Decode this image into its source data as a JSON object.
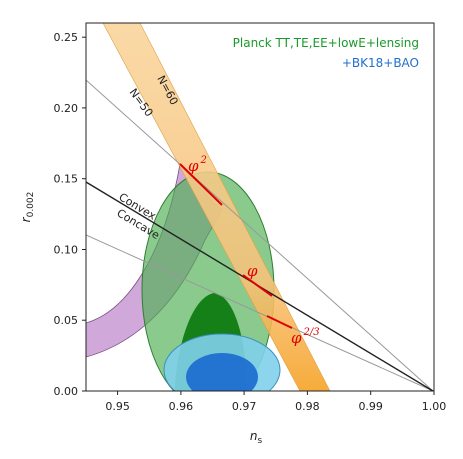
{
  "chart_data": {
    "type": "scatter",
    "xlabel": "n_s",
    "ylabel": "r_0.002",
    "xlim": [
      0.945,
      1.0
    ],
    "ylim": [
      0.0,
      0.26
    ],
    "x_ticks": [
      0.95,
      0.96,
      0.97,
      0.98,
      0.99,
      1.0
    ],
    "x_tick_labels": [
      "0.95",
      "0.96",
      "0.97",
      "0.98",
      "0.99",
      "1.00"
    ],
    "y_ticks": [
      0.0,
      0.05,
      0.1,
      0.15,
      0.2,
      0.25
    ],
    "y_tick_labels": [
      "0.00",
      "0.05",
      "0.10",
      "0.15",
      "0.20",
      "0.25"
    ],
    "grid": false,
    "legend_position": "top-right",
    "legend": [
      {
        "text": "Planck TT,TE,EE+lowE+lensing",
        "color": "#1a9a2a"
      },
      {
        "text": "+BK18+BAO",
        "color": "#1f6fd1"
      }
    ],
    "series": [
      {
        "name": "Planck TT,TE,EE+lowE+lensing",
        "kind": "contour",
        "color": "#2e9c3a",
        "contour_68": {
          "center": [
            0.9665,
            0.03
          ],
          "extent_x": [
            0.9615,
            0.9715
          ],
          "y_max": 0.068
        },
        "contour_95": {
          "center": [
            0.9665,
            0.055
          ],
          "extent_x": [
            0.9553,
            0.9765
          ],
          "y_max": 0.128
        }
      },
      {
        "name": "+BK18+BAO",
        "kind": "contour",
        "color": "#1f7fd8",
        "contour_68": {
          "center": [
            0.9662,
            0.012
          ],
          "extent_x": [
            0.9618,
            0.9708
          ],
          "y_max": 0.026
        },
        "contour_95": {
          "center": [
            0.9662,
            0.018
          ],
          "extent_x": [
            0.9588,
            0.974
          ],
          "y_max": 0.036
        }
      },
      {
        "kind": "band",
        "color": "#f3c27a",
        "region": "single-field slow-roll band, N = 50 to 60"
      },
      {
        "kind": "band",
        "color": "#c89ad4",
        "region": "natural inflation band"
      },
      {
        "kind": "line",
        "color": "#222222",
        "x": [
          0.945,
          1.0
        ],
        "y": [
          0.147,
          0.0
        ]
      },
      {
        "kind": "line",
        "color": "#999999",
        "x": [
          0.945,
          1.0
        ],
        "y": [
          0.22,
          0.0
        ]
      },
      {
        "kind": "line",
        "color": "#999999",
        "x": [
          0.945,
          1.0
        ],
        "y": [
          0.11,
          0.0
        ]
      },
      {
        "kind": "segment",
        "color": "#e00000",
        "x": [
          0.96,
          0.9683
        ],
        "y": [
          0.158,
          0.132
        ]
      },
      {
        "kind": "segment",
        "color": "#e00000",
        "x": [
          0.9683,
          0.9735
        ],
        "y": [
          0.081,
          0.063
        ]
      },
      {
        "kind": "segment",
        "color": "#e00000",
        "x": [
          0.9735,
          0.978
        ],
        "y": [
          0.055,
          0.043
        ]
      }
    ],
    "annotations": {
      "n60": "N=60",
      "n50": "N=50",
      "convex": "Convex",
      "concave": "Concave",
      "phi2": {
        "base": "φ",
        "exp": "2"
      },
      "phi1": {
        "base": "φ",
        "exp": ""
      },
      "phi23": {
        "base": "φ",
        "exp": "2/3"
      }
    }
  }
}
